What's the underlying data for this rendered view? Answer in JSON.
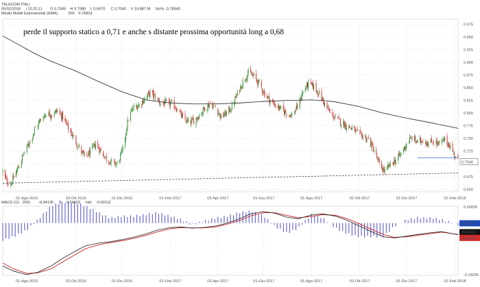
{
  "colors": {
    "up": "#2e8b2e",
    "down": "#d12b2b",
    "ema": "#1a1a1a",
    "macd_line": "#1a1a1a",
    "signal_line": "#c81e1e",
    "histogram": "#5b5bd0",
    "support_line": "#4a7fd4",
    "grid": "#d8d8d8",
    "price_tag_bg": "#ffffff",
    "macd_tag_blue": "#1c48b8",
    "macd_tag_black": "#111111",
    "macd_tag_red": "#d12b2b"
  },
  "header": {
    "instrument": "TELECOM ITALI",
    "ohlc_line": [
      {
        "text": "05/02/2018",
        "color": "#333333"
      },
      {
        "text": "| 10.20.11",
        "color": "#333333"
      },
      {
        "text": "O 0,7045",
        "color": "#333333"
      },
      {
        "text": "H 0,7080",
        "color": "#2e8b2e"
      },
      {
        "text": "L 0,6970",
        "color": "#d12b2b"
      },
      {
        "text": "C 0,7040",
        "color": "#333333"
      },
      {
        "text": "V 19,887 M",
        "color": "#333333"
      },
      {
        "text": "Var% -0,78940",
        "color": "#d12b2b"
      }
    ],
    "ema_line": [
      {
        "text": "Media Mobili Esponenziali (EMA)",
        "color": "#333333"
      },
      {
        "text": "200",
        "color": "#333333"
      },
      {
        "text": "0,76823",
        "color": "#333333"
      }
    ]
  },
  "annotation": "perde il supporto statico a 0,71 e anche s distante prossima opportunità long a 0,68",
  "chart_data": [
    {
      "type": "candlestick",
      "title": "TELECOM ITALI",
      "x_range": [
        "2016-07-01",
        "2018-02-05"
      ],
      "ylim": [
        0.645,
        0.985
      ],
      "y_ticks": [
        "0.975",
        "0.950",
        "0.925",
        "0.900",
        "0.875",
        "0.850",
        "0.825",
        "0.800",
        "0.775",
        "0.750",
        "0.725",
        "0.700",
        "0.675",
        "0.650"
      ],
      "x_ticks": [
        "01-Ago-2016",
        "03-Ott-2016",
        "01-Dic-2016",
        "01-Feb-2017",
        "03-Apr-2017",
        "01-Giu-2017",
        "01-Ago-2017",
        "02-Ott-2017",
        "01-Dic-2017",
        "01-Feb-2018"
      ],
      "x_tick_dates": [
        "2016-08-01",
        "2016-10-03",
        "2016-12-01",
        "2017-02-01",
        "2017-04-03",
        "2017-06-01",
        "2017-08-01",
        "2017-10-02",
        "2017-12-01",
        "2018-02-01"
      ],
      "last_price_label": "0,7040",
      "last_price": 0.704,
      "close_path": [
        [
          "2016-07-01",
          0.685
        ],
        [
          "2016-07-06",
          0.665
        ],
        [
          "2016-07-12",
          0.662
        ],
        [
          "2016-07-20",
          0.69
        ],
        [
          "2016-07-28",
          0.72
        ],
        [
          "2016-08-05",
          0.745
        ],
        [
          "2016-08-12",
          0.77
        ],
        [
          "2016-08-19",
          0.788
        ],
        [
          "2016-08-26",
          0.8
        ],
        [
          "2016-09-02",
          0.797
        ],
        [
          "2016-09-09",
          0.805
        ],
        [
          "2016-09-16",
          0.792
        ],
        [
          "2016-09-23",
          0.77
        ],
        [
          "2016-09-30",
          0.752
        ],
        [
          "2016-10-07",
          0.732
        ],
        [
          "2016-10-14",
          0.713
        ],
        [
          "2016-10-21",
          0.722
        ],
        [
          "2016-10-28",
          0.74
        ],
        [
          "2016-11-04",
          0.725
        ],
        [
          "2016-11-11",
          0.71
        ],
        [
          "2016-11-18",
          0.703
        ],
        [
          "2016-11-25",
          0.7
        ],
        [
          "2016-12-02",
          0.728
        ],
        [
          "2016-12-09",
          0.79
        ],
        [
          "2016-12-16",
          0.812
        ],
        [
          "2016-12-23",
          0.816
        ],
        [
          "2016-12-30",
          0.828
        ],
        [
          "2017-01-06",
          0.84
        ],
        [
          "2017-01-13",
          0.832
        ],
        [
          "2017-01-20",
          0.818
        ],
        [
          "2017-01-27",
          0.82
        ],
        [
          "2017-02-03",
          0.818
        ],
        [
          "2017-02-10",
          0.808
        ],
        [
          "2017-02-17",
          0.79
        ],
        [
          "2017-02-24",
          0.782
        ],
        [
          "2017-03-03",
          0.785
        ],
        [
          "2017-03-10",
          0.796
        ],
        [
          "2017-03-17",
          0.81
        ],
        [
          "2017-03-24",
          0.818
        ],
        [
          "2017-03-31",
          0.812
        ],
        [
          "2017-04-07",
          0.792
        ],
        [
          "2017-04-14",
          0.8
        ],
        [
          "2017-04-21",
          0.812
        ],
        [
          "2017-04-28",
          0.838
        ],
        [
          "2017-05-05",
          0.862
        ],
        [
          "2017-05-12",
          0.88
        ],
        [
          "2017-05-19",
          0.872
        ],
        [
          "2017-05-26",
          0.858
        ],
        [
          "2017-06-02",
          0.838
        ],
        [
          "2017-06-09",
          0.825
        ],
        [
          "2017-06-16",
          0.815
        ],
        [
          "2017-06-23",
          0.808
        ],
        [
          "2017-06-30",
          0.8
        ],
        [
          "2017-07-07",
          0.796
        ],
        [
          "2017-07-14",
          0.812
        ],
        [
          "2017-07-21",
          0.842
        ],
        [
          "2017-07-28",
          0.858
        ],
        [
          "2017-08-04",
          0.852
        ],
        [
          "2017-08-11",
          0.838
        ],
        [
          "2017-08-18",
          0.818
        ],
        [
          "2017-08-25",
          0.8
        ],
        [
          "2017-09-01",
          0.79
        ],
        [
          "2017-09-08",
          0.782
        ],
        [
          "2017-09-15",
          0.775
        ],
        [
          "2017-09-22",
          0.77
        ],
        [
          "2017-09-29",
          0.76
        ],
        [
          "2017-10-06",
          0.755
        ],
        [
          "2017-10-13",
          0.748
        ],
        [
          "2017-10-20",
          0.728
        ],
        [
          "2017-10-27",
          0.698
        ],
        [
          "2017-11-03",
          0.685
        ],
        [
          "2017-11-10",
          0.698
        ],
        [
          "2017-11-17",
          0.708
        ],
        [
          "2017-11-24",
          0.72
        ],
        [
          "2017-12-01",
          0.74
        ],
        [
          "2017-12-08",
          0.752
        ],
        [
          "2017-12-15",
          0.742
        ],
        [
          "2017-12-22",
          0.748
        ],
        [
          "2017-12-29",
          0.74
        ],
        [
          "2018-01-05",
          0.745
        ],
        [
          "2018-01-12",
          0.738
        ],
        [
          "2018-01-19",
          0.748
        ],
        [
          "2018-01-26",
          0.735
        ],
        [
          "2018-02-02",
          0.712
        ],
        [
          "2018-02-05",
          0.704
        ]
      ],
      "ema_200": [
        [
          "2016-07-01",
          0.952
        ],
        [
          "2016-07-20",
          0.936
        ],
        [
          "2016-08-10",
          0.918
        ],
        [
          "2016-09-01",
          0.902
        ],
        [
          "2016-10-01",
          0.884
        ],
        [
          "2016-11-01",
          0.862
        ],
        [
          "2016-12-01",
          0.842
        ],
        [
          "2017-01-01",
          0.826
        ],
        [
          "2017-02-01",
          0.82
        ],
        [
          "2017-03-01",
          0.818
        ],
        [
          "2017-04-01",
          0.818
        ],
        [
          "2017-05-01",
          0.82
        ],
        [
          "2017-06-01",
          0.823
        ],
        [
          "2017-07-01",
          0.825
        ],
        [
          "2017-08-01",
          0.826
        ],
        [
          "2017-08-15",
          0.825
        ],
        [
          "2017-09-01",
          0.822
        ],
        [
          "2017-10-01",
          0.813
        ],
        [
          "2017-11-01",
          0.8
        ],
        [
          "2017-12-01",
          0.79
        ],
        [
          "2018-01-01",
          0.781
        ],
        [
          "2018-01-20",
          0.775
        ],
        [
          "2018-02-05",
          0.77
        ]
      ],
      "trendline_dashed": [
        [
          "2016-07-01",
          0.662
        ],
        [
          "2018-02-05",
          0.682
        ]
      ],
      "support_line": [
        [
          "2017-12-15",
          0.712
        ],
        [
          "2018-02-05",
          0.712
        ]
      ]
    },
    {
      "type": "line",
      "title": "MACD",
      "header": [
        {
          "text": "MACD",
          "color": "#333333"
        },
        {
          "text": "(12 , 200)",
          "color": "#333333"
        },
        {
          "text": "-0,04135",
          "color": "#d12b2b"
        },
        {
          "text": "8",
          "color": "#333333"
        },
        {
          "text": "-0,04022",
          "color": "#333333"
        },
        {
          "text": "Hst",
          "color": "#333333"
        },
        {
          "text": "-0,00112",
          "color": "#1c48b8"
        }
      ],
      "ylim": [
        -0.1828,
        0.0588
      ],
      "y_ticks": [
        "0,05836",
        "-0,18295"
      ],
      "x_range": [
        "2016-07-01",
        "2018-02-05"
      ],
      "x_ticks": [
        "01-Ago-2016",
        "03-Ott-2016",
        "01-Dic-2016",
        "01-Feb-2017",
        "03-Apr-2017",
        "01-Giu-2017",
        "01-Ago-2017",
        "02-Ott-2017",
        "01-Dic-2017",
        "01-Feb-2018"
      ],
      "x_tick_dates": [
        "2016-08-01",
        "2016-10-03",
        "2016-12-01",
        "2017-02-01",
        "2017-04-03",
        "2017-06-01",
        "2017-08-01",
        "2017-10-02",
        "2017-12-01",
        "2018-02-01"
      ],
      "last_values": {
        "histogram": "-0,00112",
        "signal": "-0,04022",
        "macd": "-0,04135"
      },
      "macd_line": [
        [
          "2016-07-01",
          -0.15
        ],
        [
          "2016-07-15",
          -0.168
        ],
        [
          "2016-08-01",
          -0.18
        ],
        [
          "2016-08-15",
          -0.172
        ],
        [
          "2016-09-01",
          -0.15
        ],
        [
          "2016-09-15",
          -0.125
        ],
        [
          "2016-10-01",
          -0.1
        ],
        [
          "2016-10-15",
          -0.08
        ],
        [
          "2016-11-01",
          -0.07
        ],
        [
          "2016-11-15",
          -0.066
        ],
        [
          "2016-12-01",
          -0.058
        ],
        [
          "2016-12-15",
          -0.05
        ],
        [
          "2017-01-01",
          -0.038
        ],
        [
          "2017-01-15",
          -0.025
        ],
        [
          "2017-02-01",
          -0.016
        ],
        [
          "2017-02-15",
          -0.014
        ],
        [
          "2017-03-01",
          -0.018
        ],
        [
          "2017-03-15",
          -0.016
        ],
        [
          "2017-04-01",
          -0.01
        ],
        [
          "2017-04-15",
          0.0
        ],
        [
          "2017-05-01",
          0.015
        ],
        [
          "2017-05-15",
          0.032
        ],
        [
          "2017-06-01",
          0.04
        ],
        [
          "2017-06-15",
          0.034
        ],
        [
          "2017-07-01",
          0.02
        ],
        [
          "2017-07-15",
          0.015
        ],
        [
          "2017-08-01",
          0.028
        ],
        [
          "2017-08-15",
          0.032
        ],
        [
          "2017-09-01",
          0.024
        ],
        [
          "2017-09-15",
          0.01
        ],
        [
          "2017-10-01",
          -0.01
        ],
        [
          "2017-10-15",
          -0.028
        ],
        [
          "2017-11-01",
          -0.048
        ],
        [
          "2017-11-15",
          -0.052
        ],
        [
          "2017-12-01",
          -0.046
        ],
        [
          "2017-12-15",
          -0.04
        ],
        [
          "2018-01-01",
          -0.034
        ],
        [
          "2018-01-15",
          -0.03
        ],
        [
          "2018-02-05",
          -0.041
        ]
      ],
      "signal_line": [
        [
          "2016-07-01",
          -0.14
        ],
        [
          "2016-07-15",
          -0.16
        ],
        [
          "2016-08-01",
          -0.176
        ],
        [
          "2016-08-15",
          -0.174
        ],
        [
          "2016-09-01",
          -0.16
        ],
        [
          "2016-09-15",
          -0.137
        ],
        [
          "2016-10-01",
          -0.112
        ],
        [
          "2016-10-15",
          -0.09
        ],
        [
          "2016-11-01",
          -0.076
        ],
        [
          "2016-11-15",
          -0.069
        ],
        [
          "2016-12-01",
          -0.062
        ],
        [
          "2016-12-15",
          -0.054
        ],
        [
          "2017-01-01",
          -0.043
        ],
        [
          "2017-01-15",
          -0.031
        ],
        [
          "2017-02-01",
          -0.02
        ],
        [
          "2017-02-15",
          -0.016
        ],
        [
          "2017-03-01",
          -0.017
        ],
        [
          "2017-03-15",
          -0.017
        ],
        [
          "2017-04-01",
          -0.013
        ],
        [
          "2017-04-15",
          -0.004
        ],
        [
          "2017-05-01",
          0.009
        ],
        [
          "2017-05-15",
          0.025
        ],
        [
          "2017-06-01",
          0.036
        ],
        [
          "2017-06-15",
          0.036
        ],
        [
          "2017-07-01",
          0.026
        ],
        [
          "2017-07-15",
          0.018
        ],
        [
          "2017-08-01",
          0.023
        ],
        [
          "2017-08-15",
          0.029
        ],
        [
          "2017-09-01",
          0.027
        ],
        [
          "2017-09-15",
          0.016
        ],
        [
          "2017-10-01",
          -0.002
        ],
        [
          "2017-10-15",
          -0.02
        ],
        [
          "2017-11-01",
          -0.04
        ],
        [
          "2017-11-15",
          -0.05
        ],
        [
          "2017-12-01",
          -0.048
        ],
        [
          "2017-12-15",
          -0.043
        ],
        [
          "2018-01-01",
          -0.037
        ],
        [
          "2018-01-15",
          -0.032
        ],
        [
          "2018-02-05",
          -0.04
        ]
      ]
    }
  ]
}
